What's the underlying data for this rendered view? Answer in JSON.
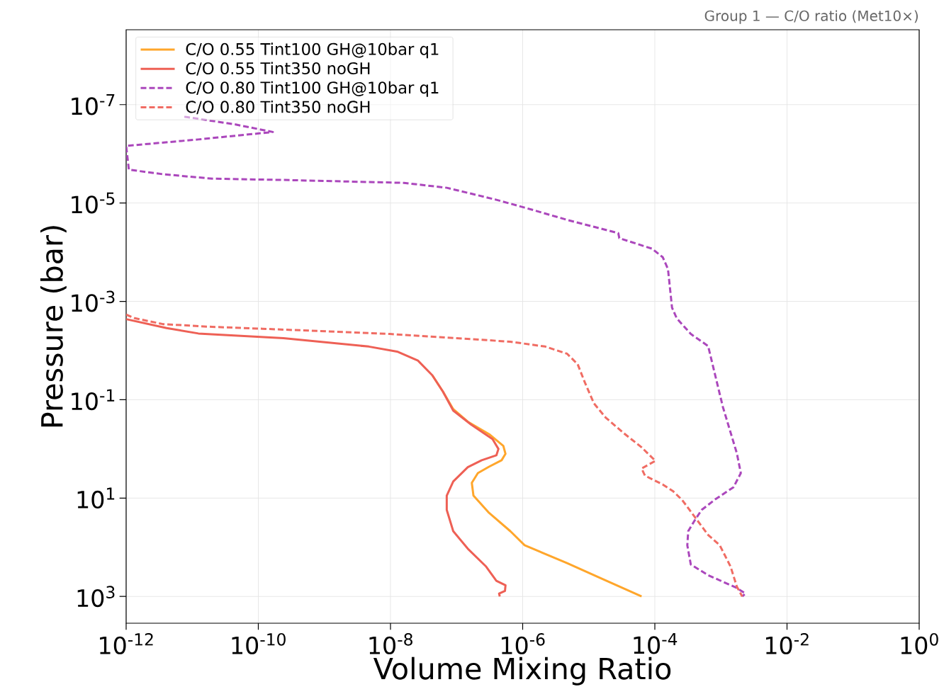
{
  "chart_data": {
    "type": "line",
    "xlabel": "Volume Mixing Ratio",
    "ylabel": "Pressure (bar)",
    "annotations": [
      "Group 1 — C/O ratio (Met10×)"
    ],
    "log": "xy",
    "grid": true,
    "legend": "top left",
    "marker": "none",
    "xlim": [
      1e-12,
      1
    ],
    "ylim": [
      3500,
      3e-09
    ],
    "xticks": [
      {
        "value": 1e-12,
        "label": "10$^{-12}$"
      },
      {
        "value": 1e-10,
        "label": "10$^{-10}$"
      },
      {
        "value": 1e-08,
        "label": "10$^{-8}$"
      },
      {
        "value": 1e-06,
        "label": "10$^{-6}$"
      },
      {
        "value": 0.0001,
        "label": "10$^{-4}$"
      },
      {
        "value": 0.01,
        "label": "10$^{-2}$"
      },
      {
        "value": 1,
        "label": "10$^{0}$"
      }
    ],
    "yticks": [
      {
        "value": 1e-07,
        "label": "10$^{-7}$"
      },
      {
        "value": 1e-05,
        "label": "10$^{-5}$"
      },
      {
        "value": 0.001,
        "label": "10$^{-3}$"
      },
      {
        "value": 0.1,
        "label": "10$^{-1}$"
      },
      {
        "value": 10,
        "label": "10$^{1}$"
      },
      {
        "value": 1000,
        "label": "10$^{3}$"
      }
    ],
    "series": [
      {
        "name": "C/O 0.55 Tint100 GH@10bar q1",
        "color": "#ffa62b",
        "line_style": "solid",
        "x": [
          4.3e-08,
          6.2e-08,
          8.9e-08,
          1.48e-07,
          3.1e-07,
          5.1e-07,
          5.5e-07,
          4.8e-07,
          3.1e-07,
          2.1e-07,
          1.7e-07,
          1.8e-07,
          3.1e-07,
          6.5e-07,
          1.07e-06,
          4.7e-06,
          1.6e-05,
          6.3e-05
        ],
        "values": [
          0.032,
          0.068,
          0.155,
          0.28,
          0.5,
          0.87,
          1.26,
          1.7,
          2.3,
          3.1,
          4.9,
          8.9,
          20,
          47,
          91,
          210,
          440,
          1000
        ]
      },
      {
        "name": "C/O 0.55 Tint350 noGH",
        "color": "#ee6055",
        "line_style": "solid",
        "x": [
          1e-12,
          4.1e-12,
          1.24e-11,
          2.4e-10,
          4.7e-09,
          1.26e-08,
          2.6e-08,
          4.3e-08,
          6.2e-08,
          8.9e-08,
          1.66e-07,
          3.5e-07,
          4.3e-07,
          4e-07,
          2.4e-07,
          1.48e-07,
          8.9e-08,
          7.1e-08,
          7.1e-08,
          8.9e-08,
          1.48e-07,
          2.8e-07,
          4e-07,
          5.5e-07,
          5.4e-07,
          4.4e-07,
          4.5e-07
        ],
        "values": [
          0.0023,
          0.0035,
          0.0045,
          0.0056,
          0.0083,
          0.0105,
          0.016,
          0.032,
          0.068,
          0.166,
          0.32,
          0.63,
          1.0,
          1.35,
          1.7,
          2.35,
          4.6,
          8.9,
          17.4,
          47,
          107,
          247,
          480,
          590,
          770,
          875,
          1000
        ]
      },
      {
        "name": "C/O 0.80 Tint100 GH@10bar q1",
        "color": "#ab47bc",
        "line_style": "dashed",
        "x": [
          7.6e-12,
          4.3e-11,
          1.66e-10,
          1.24e-11,
          1e-12,
          1.1e-12,
          3.6e-12,
          2e-11,
          2.4e-10,
          1.6e-08,
          7.1e-08,
          4e-07,
          1.07e-06,
          4.7e-06,
          1.26e-05,
          2.8e-05,
          2.9e-05,
          9.1e-05,
          0.000132,
          0.000158,
          0.000182,
          0.000214,
          0.00035,
          0.00064,
          0.00107,
          0.00174,
          0.002,
          0.00155,
          0.00083,
          0.00051,
          0.0004,
          0.00032,
          0.00031,
          0.00035,
          0.00064,
          0.00174,
          0.00235,
          0.0021
        ],
        "values": [
          1.76e-07,
          2.5e-07,
          3.6e-07,
          5.1e-07,
          6.9e-07,
          2.1e-06,
          2.6e-06,
          3.2e-06,
          3.4e-06,
          3.9e-06,
          4.9e-06,
          8.6e-06,
          1.24e-05,
          2.2e-05,
          3.1e-05,
          4.1e-05,
          5.2e-05,
          8.5e-05,
          0.000127,
          0.00022,
          0.00134,
          0.0022,
          0.0046,
          0.0081,
          0.14,
          1.22,
          3.1,
          6.0,
          10.5,
          17.4,
          28.6,
          47,
          91,
          224,
          369,
          672,
          875,
          1000
        ]
      },
      {
        "name": "C/O 0.80 Tint350 noGH",
        "color": "#f06c63",
        "line_style": "dashed",
        "x": [
          1e-12,
          1.35e-12,
          3.6e-12,
          2e-11,
          1.15e-10,
          9.8e-09,
          6.5e-07,
          2.2e-06,
          4.7e-06,
          6.8e-06,
          8.7e-06,
          1.2e-05,
          1.8e-05,
          3.4e-05,
          6.3e-05,
          0.000102,
          6.3e-05,
          7.1e-05,
          0.000132,
          0.00019,
          0.00026,
          0.0004,
          0.00064,
          0.00096,
          0.0014,
          0.00174,
          0.0021
        ],
        "values": [
          0.00186,
          0.0022,
          0.0029,
          0.0033,
          0.0036,
          0.0046,
          0.0066,
          0.0083,
          0.0116,
          0.019,
          0.044,
          0.119,
          0.23,
          0.48,
          0.93,
          1.75,
          2.5,
          3.5,
          5.3,
          7.3,
          11,
          24,
          56,
          91,
          247,
          630,
          1000
        ]
      }
    ]
  }
}
